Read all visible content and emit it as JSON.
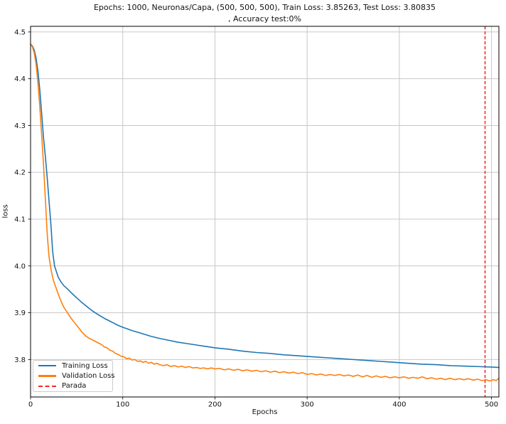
{
  "figure": {
    "title_line1": "Epochs: 1000, Neuronas/Capa, (500, 500, 500), Train Loss: 3.85263, Test Loss: 3.80835",
    "title_line2": ", Accuracy test:0%"
  },
  "legend": {
    "entries": [
      {
        "label": "Training Loss",
        "color": "#1f77b4",
        "dashed": false
      },
      {
        "label": "Validation Loss",
        "color": "#ff7f0e",
        "dashed": false
      },
      {
        "label": "Parada",
        "color": "#f22c2c",
        "dashed": true
      }
    ]
  },
  "chart_data": {
    "type": "line",
    "title": "Epochs: 1000, Neuronas/Capa, (500, 500, 500), Train Loss: 3.85263, Test Loss: 3.80835 , Accuracy test:0%",
    "xlabel": "Epochs",
    "ylabel": "loss",
    "xlim": [
      0,
      508
    ],
    "ylim": [
      3.72,
      4.512
    ],
    "xticks": [
      0,
      100,
      200,
      300,
      400,
      500
    ],
    "yticks": [
      3.8,
      3.9,
      4.0,
      4.1,
      4.2,
      4.3,
      4.4,
      4.5
    ],
    "grid": true,
    "grid_color": "#c8c8c8",
    "legend_position": "lower left",
    "series": [
      {
        "name": "Training Loss",
        "color": "#1f77b4",
        "style": "solid",
        "points": [
          [
            0,
            4.474
          ],
          [
            2,
            4.47
          ],
          [
            4,
            4.461
          ],
          [
            6,
            4.444
          ],
          [
            8,
            4.416
          ],
          [
            10,
            4.377
          ],
          [
            12,
            4.327
          ],
          [
            14,
            4.275
          ],
          [
            16,
            4.235
          ],
          [
            18,
            4.19
          ],
          [
            20,
            4.14
          ],
          [
            22,
            4.09
          ],
          [
            24,
            4.03
          ],
          [
            26,
            4.0
          ],
          [
            28,
            3.988
          ],
          [
            30,
            3.976
          ],
          [
            33,
            3.966
          ],
          [
            36,
            3.958
          ],
          [
            40,
            3.951
          ],
          [
            45,
            3.941
          ],
          [
            50,
            3.932
          ],
          [
            55,
            3.923
          ],
          [
            60,
            3.915
          ],
          [
            65,
            3.907
          ],
          [
            70,
            3.9
          ],
          [
            75,
            3.894
          ],
          [
            80,
            3.888
          ],
          [
            85,
            3.883
          ],
          [
            90,
            3.878
          ],
          [
            95,
            3.873
          ],
          [
            100,
            3.869
          ],
          [
            110,
            3.862
          ],
          [
            120,
            3.856
          ],
          [
            130,
            3.85
          ],
          [
            140,
            3.845
          ],
          [
            150,
            3.841
          ],
          [
            160,
            3.837
          ],
          [
            170,
            3.834
          ],
          [
            180,
            3.831
          ],
          [
            190,
            3.828
          ],
          [
            200,
            3.825
          ],
          [
            215,
            3.822
          ],
          [
            230,
            3.818
          ],
          [
            245,
            3.815
          ],
          [
            260,
            3.813
          ],
          [
            275,
            3.81
          ],
          [
            290,
            3.808
          ],
          [
            305,
            3.806
          ],
          [
            320,
            3.804
          ],
          [
            335,
            3.802
          ],
          [
            350,
            3.8
          ],
          [
            365,
            3.798
          ],
          [
            380,
            3.796
          ],
          [
            395,
            3.794
          ],
          [
            410,
            3.792
          ],
          [
            425,
            3.79
          ],
          [
            440,
            3.789
          ],
          [
            455,
            3.787
          ],
          [
            470,
            3.786
          ],
          [
            485,
            3.785
          ],
          [
            500,
            3.784
          ],
          [
            508,
            3.783
          ]
        ]
      },
      {
        "name": "Validation Loss",
        "color": "#ff7f0e",
        "style": "solid",
        "points": [
          [
            0,
            4.474
          ],
          [
            2,
            4.468
          ],
          [
            4,
            4.455
          ],
          [
            6,
            4.431
          ],
          [
            8,
            4.392
          ],
          [
            10,
            4.341
          ],
          [
            12,
            4.281
          ],
          [
            14,
            4.218
          ],
          [
            16,
            4.145
          ],
          [
            18,
            4.07
          ],
          [
            20,
            4.02
          ],
          [
            22,
            3.995
          ],
          [
            24,
            3.975
          ],
          [
            26,
            3.962
          ],
          [
            28,
            3.951
          ],
          [
            30,
            3.94
          ],
          [
            33,
            3.925
          ],
          [
            36,
            3.912
          ],
          [
            40,
            3.9
          ],
          [
            44,
            3.888
          ],
          [
            48,
            3.878
          ],
          [
            52,
            3.868
          ],
          [
            56,
            3.858
          ],
          [
            60,
            3.85
          ],
          [
            64,
            3.845
          ],
          [
            68,
            3.841
          ],
          [
            71,
            3.838
          ],
          [
            74,
            3.835
          ],
          [
            77,
            3.832
          ],
          [
            80,
            3.827
          ],
          [
            83,
            3.825
          ],
          [
            86,
            3.82
          ],
          [
            89,
            3.818
          ],
          [
            92,
            3.813
          ],
          [
            95,
            3.811
          ],
          [
            98,
            3.807
          ],
          [
            101,
            3.806
          ],
          [
            104,
            3.802
          ],
          [
            107,
            3.803
          ],
          [
            110,
            3.799
          ],
          [
            113,
            3.8
          ],
          [
            116,
            3.796
          ],
          [
            119,
            3.797
          ],
          [
            122,
            3.794
          ],
          [
            125,
            3.796
          ],
          [
            128,
            3.792
          ],
          [
            131,
            3.794
          ],
          [
            134,
            3.79
          ],
          [
            137,
            3.792
          ],
          [
            140,
            3.789
          ],
          [
            144,
            3.787
          ],
          [
            148,
            3.789
          ],
          [
            152,
            3.785
          ],
          [
            156,
            3.787
          ],
          [
            160,
            3.784
          ],
          [
            164,
            3.786
          ],
          [
            168,
            3.783
          ],
          [
            172,
            3.785
          ],
          [
            176,
            3.782
          ],
          [
            180,
            3.783
          ],
          [
            184,
            3.781
          ],
          [
            188,
            3.782
          ],
          [
            192,
            3.78
          ],
          [
            196,
            3.782
          ],
          [
            200,
            3.78
          ],
          [
            205,
            3.781
          ],
          [
            210,
            3.778
          ],
          [
            215,
            3.78
          ],
          [
            220,
            3.777
          ],
          [
            225,
            3.779
          ],
          [
            230,
            3.776
          ],
          [
            235,
            3.778
          ],
          [
            240,
            3.775
          ],
          [
            245,
            3.777
          ],
          [
            250,
            3.774
          ],
          [
            255,
            3.776
          ],
          [
            260,
            3.773
          ],
          [
            265,
            3.775
          ],
          [
            270,
            3.772
          ],
          [
            275,
            3.774
          ],
          [
            280,
            3.771
          ],
          [
            285,
            3.773
          ],
          [
            290,
            3.77
          ],
          [
            295,
            3.772
          ],
          [
            300,
            3.768
          ],
          [
            305,
            3.77
          ],
          [
            310,
            3.767
          ],
          [
            315,
            3.769
          ],
          [
            320,
            3.766
          ],
          [
            325,
            3.768
          ],
          [
            330,
            3.766
          ],
          [
            335,
            3.768
          ],
          [
            340,
            3.765
          ],
          [
            345,
            3.767
          ],
          [
            350,
            3.764
          ],
          [
            355,
            3.767
          ],
          [
            360,
            3.763
          ],
          [
            365,
            3.766
          ],
          [
            370,
            3.762
          ],
          [
            375,
            3.765
          ],
          [
            380,
            3.762
          ],
          [
            385,
            3.764
          ],
          [
            390,
            3.761
          ],
          [
            395,
            3.763
          ],
          [
            400,
            3.761
          ],
          [
            405,
            3.763
          ],
          [
            410,
            3.76
          ],
          [
            415,
            3.762
          ],
          [
            420,
            3.76
          ],
          [
            425,
            3.763
          ],
          [
            430,
            3.759
          ],
          [
            435,
            3.761
          ],
          [
            440,
            3.758
          ],
          [
            445,
            3.76
          ],
          [
            450,
            3.757
          ],
          [
            455,
            3.76
          ],
          [
            460,
            3.757
          ],
          [
            465,
            3.759
          ],
          [
            470,
            3.757
          ],
          [
            475,
            3.759
          ],
          [
            480,
            3.756
          ],
          [
            485,
            3.758
          ],
          [
            490,
            3.755
          ],
          [
            494,
            3.757
          ],
          [
            498,
            3.754
          ],
          [
            502,
            3.757
          ],
          [
            505,
            3.755
          ],
          [
            508,
            3.76
          ]
        ]
      }
    ],
    "vline": {
      "label": "Parada",
      "x": 493,
      "color": "#f22c2c",
      "style": "dashed"
    }
  }
}
